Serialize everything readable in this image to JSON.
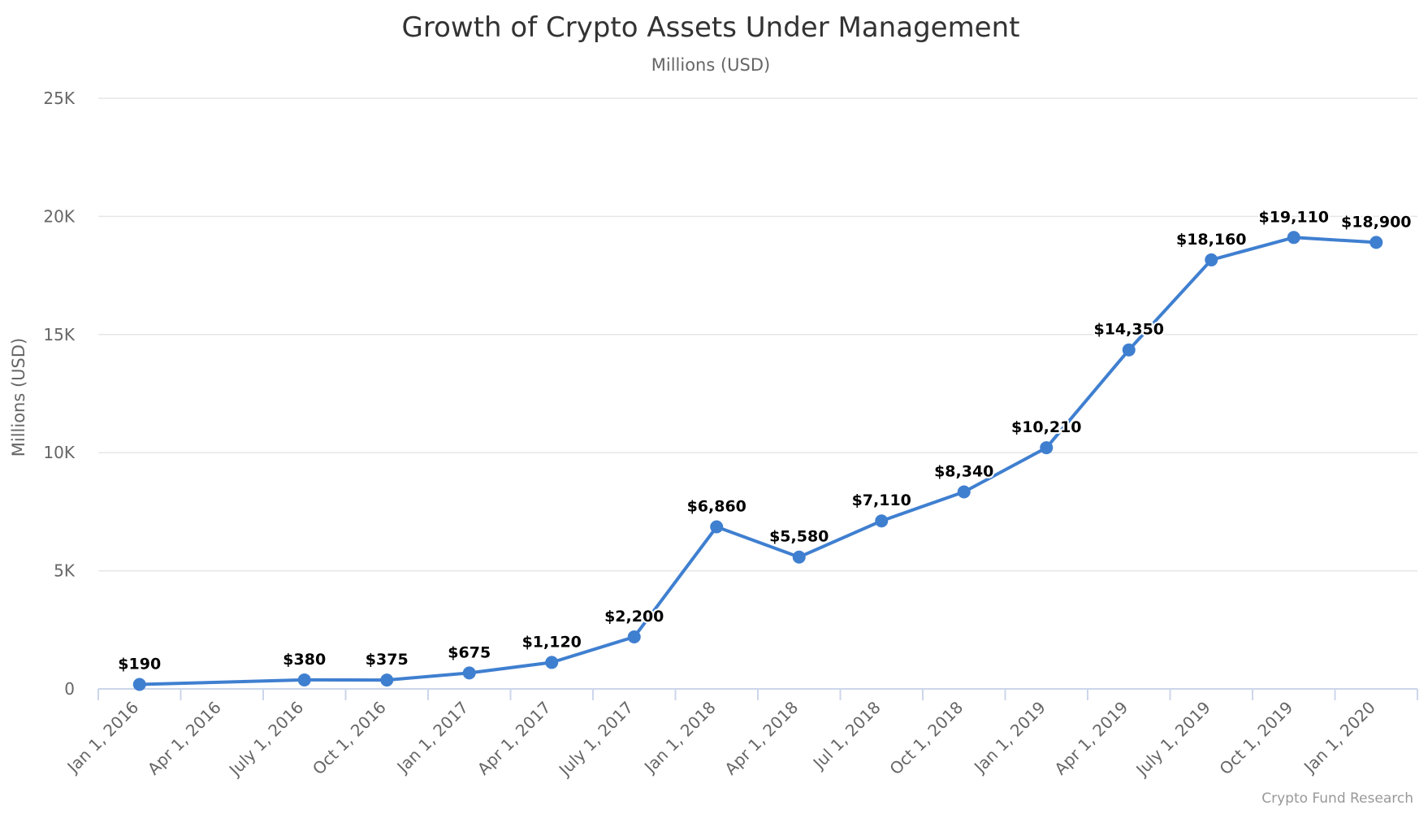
{
  "chart_data": {
    "type": "line",
    "title": "Growth of Crypto Assets Under Management",
    "subtitle": "Millions (USD)",
    "ylabel": "Millions (USD)",
    "xlabel": "",
    "ylim": [
      0,
      25000
    ],
    "yticks": [
      0,
      5000,
      10000,
      15000,
      20000,
      25000
    ],
    "ytick_labels": [
      "0",
      "5K",
      "10K",
      "15K",
      "20K",
      "25K"
    ],
    "categories": [
      "Jan 1, 2016",
      "Apr 1, 2016",
      "July 1, 2016",
      "Oct 1, 2016",
      "Jan 1, 2017",
      "Apr 1, 2017",
      "July 1, 2017",
      "Jan 1, 2018",
      "Apr 1, 2018",
      "Jul 1, 2018",
      "Oct 1, 2018",
      "Jan 1, 2019",
      "Apr 1, 2019",
      "July 1, 2019",
      "Oct 1, 2019",
      "Jan 1, 2020"
    ],
    "series": [
      {
        "values": [
          190,
          null,
          380,
          375,
          675,
          1120,
          2200,
          6860,
          5580,
          7110,
          8340,
          10210,
          14350,
          18160,
          19110,
          18900
        ],
        "data_labels": [
          "$190",
          null,
          "$380",
          "$375",
          "$675",
          "$1,120",
          "$2,200",
          "$6,860",
          "$5,580",
          "$7,110",
          "$8,340",
          "$10,210",
          "$14,350",
          "$18,160",
          "$19,110",
          "$18,900"
        ]
      }
    ],
    "grid": true,
    "legend": "none",
    "line_color": "#3f7fd0",
    "credit": "Crypto Fund Research"
  }
}
